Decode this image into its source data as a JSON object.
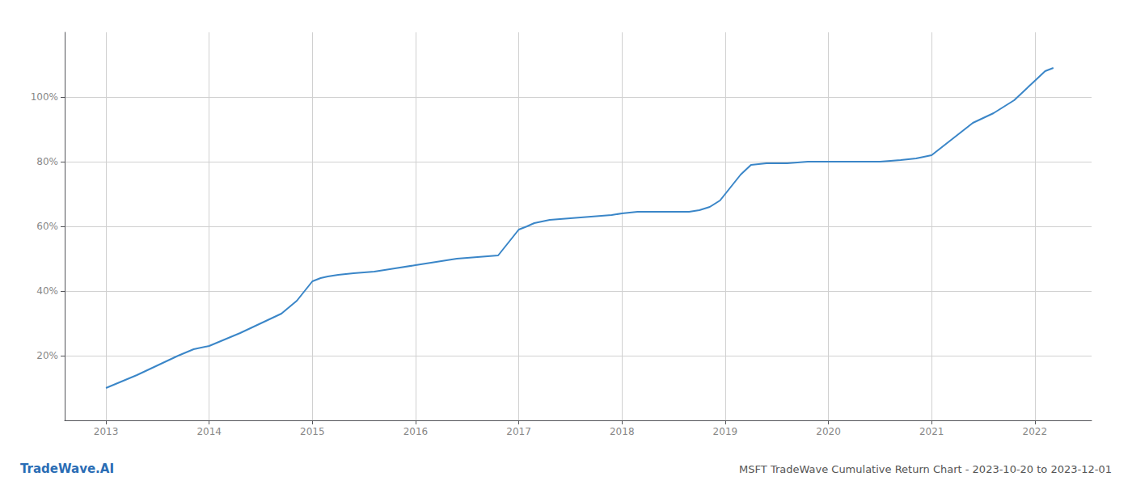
{
  "chart_data": {
    "type": "line",
    "title": "MSFT TradeWave Cumulative Return Chart - 2023-10-20 to 2023-12-01",
    "annotations": [
      "TradeWave.AI"
    ],
    "x": [
      2013.0,
      2013.15,
      2013.3,
      2013.5,
      2013.7,
      2013.85,
      2014.0,
      2014.15,
      2014.3,
      2014.5,
      2014.7,
      2014.85,
      2015.0,
      2015.08,
      2015.15,
      2015.25,
      2015.4,
      2015.6,
      2015.8,
      2016.0,
      2016.2,
      2016.4,
      2016.6,
      2016.8,
      2017.0,
      2017.08,
      2017.15,
      2017.3,
      2017.5,
      2017.7,
      2017.9,
      2018.0,
      2018.15,
      2018.3,
      2018.5,
      2018.65,
      2018.75,
      2018.85,
      2018.95,
      2019.05,
      2019.15,
      2019.25,
      2019.4,
      2019.6,
      2019.8,
      2020.0,
      2020.15,
      2020.3,
      2020.5,
      2020.7,
      2020.85,
      2021.0,
      2021.2,
      2021.4,
      2021.6,
      2021.8,
      2022.0,
      2022.1,
      2022.18
    ],
    "values": [
      10,
      12,
      14,
      17,
      20,
      22,
      23,
      25,
      27,
      30,
      33,
      37,
      43,
      44,
      44.5,
      45,
      45.5,
      46,
      47,
      48,
      49,
      50,
      50.5,
      51,
      59,
      60,
      61,
      62,
      62.5,
      63,
      63.5,
      64,
      64.5,
      64.5,
      64.5,
      64.5,
      65,
      66,
      68,
      72,
      76,
      79,
      79.5,
      79.5,
      80,
      80,
      80,
      80,
      80,
      80.5,
      81,
      82,
      87,
      92,
      95,
      99,
      105,
      108,
      109
    ],
    "color": "#3a86c8",
    "xlim": [
      2012.6,
      2022.55
    ],
    "xticks": [
      2013,
      2014,
      2015,
      2016,
      2017,
      2018,
      2019,
      2020,
      2021,
      2022
    ],
    "ylim": [
      0,
      120
    ],
    "yticks": [
      {
        "value": 20,
        "label": "20%"
      },
      {
        "value": 40,
        "label": "40%"
      },
      {
        "value": 60,
        "label": "60%"
      },
      {
        "value": 80,
        "label": "80%"
      },
      {
        "value": 100,
        "label": "100%"
      }
    ],
    "grid": true
  }
}
